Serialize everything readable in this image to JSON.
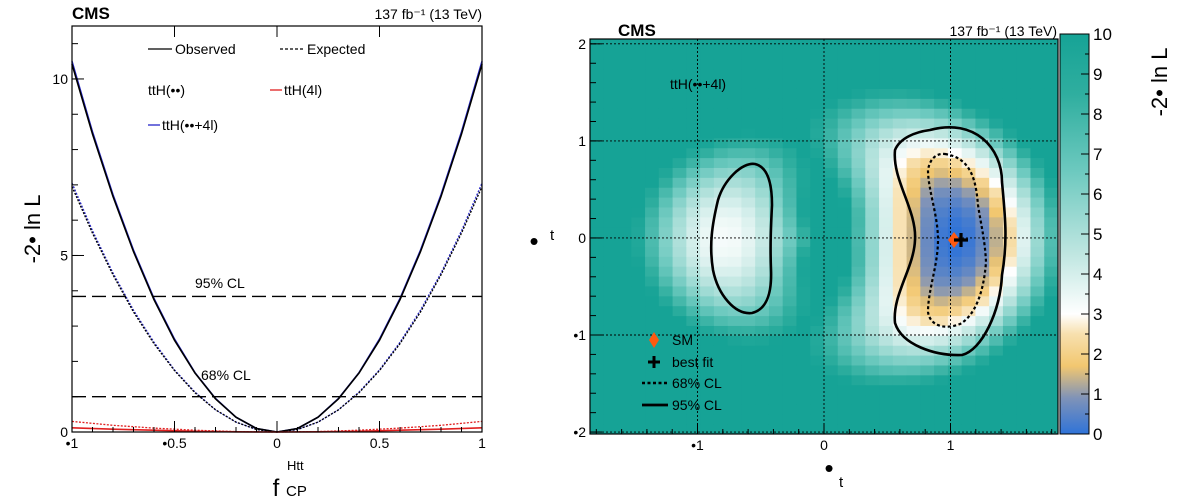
{
  "chart_data": [
    {
      "type": "line",
      "experiment_label": "CMS",
      "luminosity_label": "137 fb⁻¹ (13 TeV)",
      "xlabel": "f",
      "xlabel_sub": "CP",
      "xlabel_sup": "Htt",
      "ylabel": "-2• ln L",
      "xlim": [
        -1,
        1
      ],
      "ylim": [
        0,
        11.5
      ],
      "x_ticks": [
        {
          "value": -1,
          "label": "•1"
        },
        {
          "value": -0.5,
          "label": "•0.5"
        },
        {
          "value": 0,
          "label": "0"
        },
        {
          "value": 0.5,
          "label": "0.5"
        },
        {
          "value": 1,
          "label": "1"
        }
      ],
      "y_ticks": [
        {
          "value": 0,
          "label": "0"
        },
        {
          "value": 5,
          "label": "5"
        },
        {
          "value": 10,
          "label": "10"
        }
      ],
      "legend": {
        "style_entries": [
          "Observed",
          "Expected"
        ],
        "channel_entries": [
          "ttH(••)",
          "ttH(4l)",
          "ttH(••+4l)"
        ]
      },
      "reference_lines": [
        {
          "label": "95% CL",
          "y": 3.84
        },
        {
          "label": "68% CL",
          "y": 1.0
        }
      ],
      "series": [
        {
          "channel": "ttH(••+4l)",
          "style": "observed",
          "color": "#2626c8",
          "x": [
            -1,
            -0.9,
            -0.8,
            -0.7,
            -0.6,
            -0.5,
            -0.4,
            -0.3,
            -0.2,
            -0.1,
            0,
            0.1,
            0.2,
            0.3,
            0.4,
            0.5,
            0.6,
            0.7,
            0.8,
            0.9,
            1
          ],
          "y": [
            10.5,
            8.5,
            6.72,
            5.15,
            3.78,
            2.63,
            1.68,
            0.95,
            0.42,
            0.1,
            0,
            0.1,
            0.42,
            0.95,
            1.68,
            2.63,
            3.78,
            5.15,
            6.72,
            8.5,
            10.5
          ]
        },
        {
          "channel": "ttH(••+4l)",
          "style": "expected",
          "color": "#2626c8",
          "x": [
            -1,
            -0.9,
            -0.8,
            -0.7,
            -0.6,
            -0.5,
            -0.4,
            -0.3,
            -0.2,
            -0.1,
            0,
            0.1,
            0.2,
            0.3,
            0.4,
            0.5,
            0.6,
            0.7,
            0.8,
            0.9,
            1
          ],
          "y": [
            7.05,
            5.7,
            4.5,
            3.45,
            2.54,
            1.76,
            1.13,
            0.63,
            0.28,
            0.07,
            0,
            0.07,
            0.28,
            0.63,
            1.13,
            1.76,
            2.54,
            3.45,
            4.5,
            5.7,
            7.05
          ]
        },
        {
          "channel": "ttH(••)",
          "style": "observed",
          "color": "#000000",
          "x": [
            -1,
            -0.9,
            -0.8,
            -0.7,
            -0.6,
            -0.5,
            -0.4,
            -0.3,
            -0.2,
            -0.1,
            0,
            0.1,
            0.2,
            0.3,
            0.4,
            0.5,
            0.6,
            0.7,
            0.8,
            0.9,
            1
          ],
          "y": [
            10.42,
            8.44,
            6.67,
            5.11,
            3.75,
            2.6,
            1.67,
            0.94,
            0.42,
            0.1,
            0,
            0.1,
            0.42,
            0.94,
            1.67,
            2.6,
            3.75,
            5.11,
            6.67,
            8.44,
            10.42
          ]
        },
        {
          "channel": "ttH(••)",
          "style": "expected",
          "color": "#000000",
          "x": [
            -1,
            -0.9,
            -0.8,
            -0.7,
            -0.6,
            -0.5,
            -0.4,
            -0.3,
            -0.2,
            -0.1,
            0,
            0.1,
            0.2,
            0.3,
            0.4,
            0.5,
            0.6,
            0.7,
            0.8,
            0.9,
            1
          ],
          "y": [
            6.95,
            5.63,
            4.45,
            3.4,
            2.5,
            1.74,
            1.11,
            0.63,
            0.28,
            0.07,
            0,
            0.07,
            0.28,
            0.63,
            1.11,
            1.74,
            2.5,
            3.4,
            4.45,
            5.63,
            6.95
          ]
        },
        {
          "channel": "ttH(4l)",
          "style": "observed",
          "color": "#e02020",
          "x": [
            -1,
            -0.8,
            -0.6,
            -0.4,
            -0.2,
            0,
            0.2,
            0.4,
            0.6,
            0.8,
            1
          ],
          "y": [
            0.12,
            0.08,
            0.05,
            0.02,
            0.005,
            0,
            0.005,
            0.02,
            0.05,
            0.08,
            0.12
          ]
        },
        {
          "channel": "ttH(4l)",
          "style": "expected",
          "color": "#e02020",
          "x": [
            -1,
            -0.8,
            -0.6,
            -0.4,
            -0.2,
            0,
            0.2,
            0.4,
            0.6,
            0.8,
            1
          ],
          "y": [
            0.3,
            0.19,
            0.11,
            0.05,
            0.012,
            0,
            0.012,
            0.05,
            0.11,
            0.19,
            0.3
          ]
        }
      ]
    },
    {
      "type": "heatmap",
      "experiment_label": "CMS",
      "luminosity_label": "137 fb⁻¹ (13 TeV)",
      "channel_label": "ttH(••+4l)",
      "xlabel": "•",
      "xlabel_sub": "t",
      "ylabel": "•",
      "ylabel_sub": "t",
      "colorbar_label": "-2• ln L",
      "xlim": [
        -1.85,
        1.85
      ],
      "ylim": [
        -2.02,
        2.05
      ],
      "zlim": [
        0,
        10
      ],
      "x_ticks": [
        {
          "value": -1,
          "label": "•1"
        },
        {
          "value": 0,
          "label": "0"
        },
        {
          "value": 1,
          "label": "1"
        }
      ],
      "y_ticks": [
        {
          "value": -2,
          "label": "•2"
        },
        {
          "value": -1,
          "label": "•1"
        },
        {
          "value": 0,
          "label": "0"
        },
        {
          "value": 1,
          "label": "1"
        },
        {
          "value": 2,
          "label": "2"
        }
      ],
      "colorbar_ticks": [
        "0",
        "1",
        "2",
        "3",
        "4",
        "5",
        "6",
        "7",
        "8",
        "9",
        "10"
      ],
      "colors": {
        "low": "#2f73d8",
        "mid_low": "#f2c770",
        "mid": "#ffffff",
        "high": "#16a396"
      },
      "markers": [
        {
          "label": "SM",
          "x": 1.0,
          "y": 0.0,
          "color": "#ff5a10",
          "symbol": "diamond"
        },
        {
          "label": "best fit",
          "x": 1.04,
          "y": 0.0,
          "color": "#000000",
          "symbol": "cross"
        }
      ],
      "contour_legend": [
        "68% CL",
        "95% CL"
      ],
      "minima": [
        {
          "x": 1.04,
          "y": 0.0,
          "value": 0
        },
        {
          "x": -0.78,
          "y": 0.0,
          "value": 3.2
        }
      ]
    }
  ]
}
